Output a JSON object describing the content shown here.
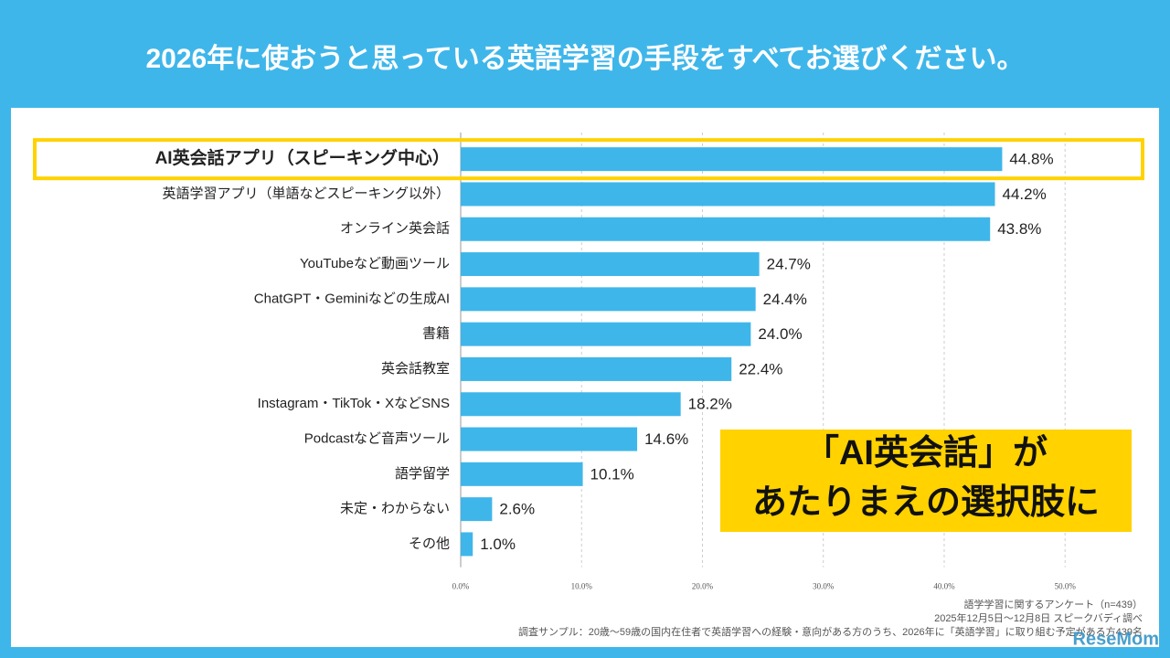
{
  "chart_data": {
    "type": "bar",
    "orientation": "horizontal",
    "title": "2026年に使おうと思っている英語学習の手段をすべてお選びください。",
    "categories": [
      "AI英会話アプリ（スピーキング中心）",
      "英語学習アプリ（単語などスピーキング以外）",
      "オンライン英会話",
      "YouTubeなど動画ツール",
      "ChatGPT・Geminiなどの生成AI",
      "書籍",
      "英会話教室",
      "Instagram・TikTok・XなどSNS",
      "Podcastなど音声ツール",
      "語学留学",
      "未定・わからない",
      "その他"
    ],
    "values": [
      44.8,
      44.2,
      43.8,
      24.7,
      24.4,
      24.0,
      22.4,
      18.2,
      14.6,
      10.1,
      2.6,
      1.0
    ],
    "value_labels": [
      "44.8%",
      "44.2%",
      "43.8%",
      "24.7%",
      "24.4%",
      "24.0%",
      "22.4%",
      "18.2%",
      "14.6%",
      "10.1%",
      "2.6%",
      "1.0%"
    ],
    "color": "#3fb6ea",
    "highlight_index": 0,
    "highlight_color": "#ffd200",
    "xlim": [
      0,
      55
    ],
    "xticks": [
      {
        "value": 0,
        "label": "0.0%"
      },
      {
        "value": 10,
        "label": "10.0%"
      },
      {
        "value": 20,
        "label": "20.0%"
      },
      {
        "value": 30,
        "label": "30.0%"
      },
      {
        "value": 40,
        "label": "40.0%"
      },
      {
        "value": 50,
        "label": "50.0%"
      }
    ],
    "grid": true,
    "annotation": [
      "「AI英会話」が",
      "あたりまえの選択肢に"
    ],
    "notes": [
      "語学学習に関するアンケート（n=439）",
      "2025年12月5日〜12月8日 スピークバディ調べ",
      "調査サンプル：20歳～59歳の国内在住者で英語学習への経験・意向がある方のうち、2026年に「英語学習」に取り組む予定がある方439名"
    ],
    "watermark": "ReseMom"
  }
}
